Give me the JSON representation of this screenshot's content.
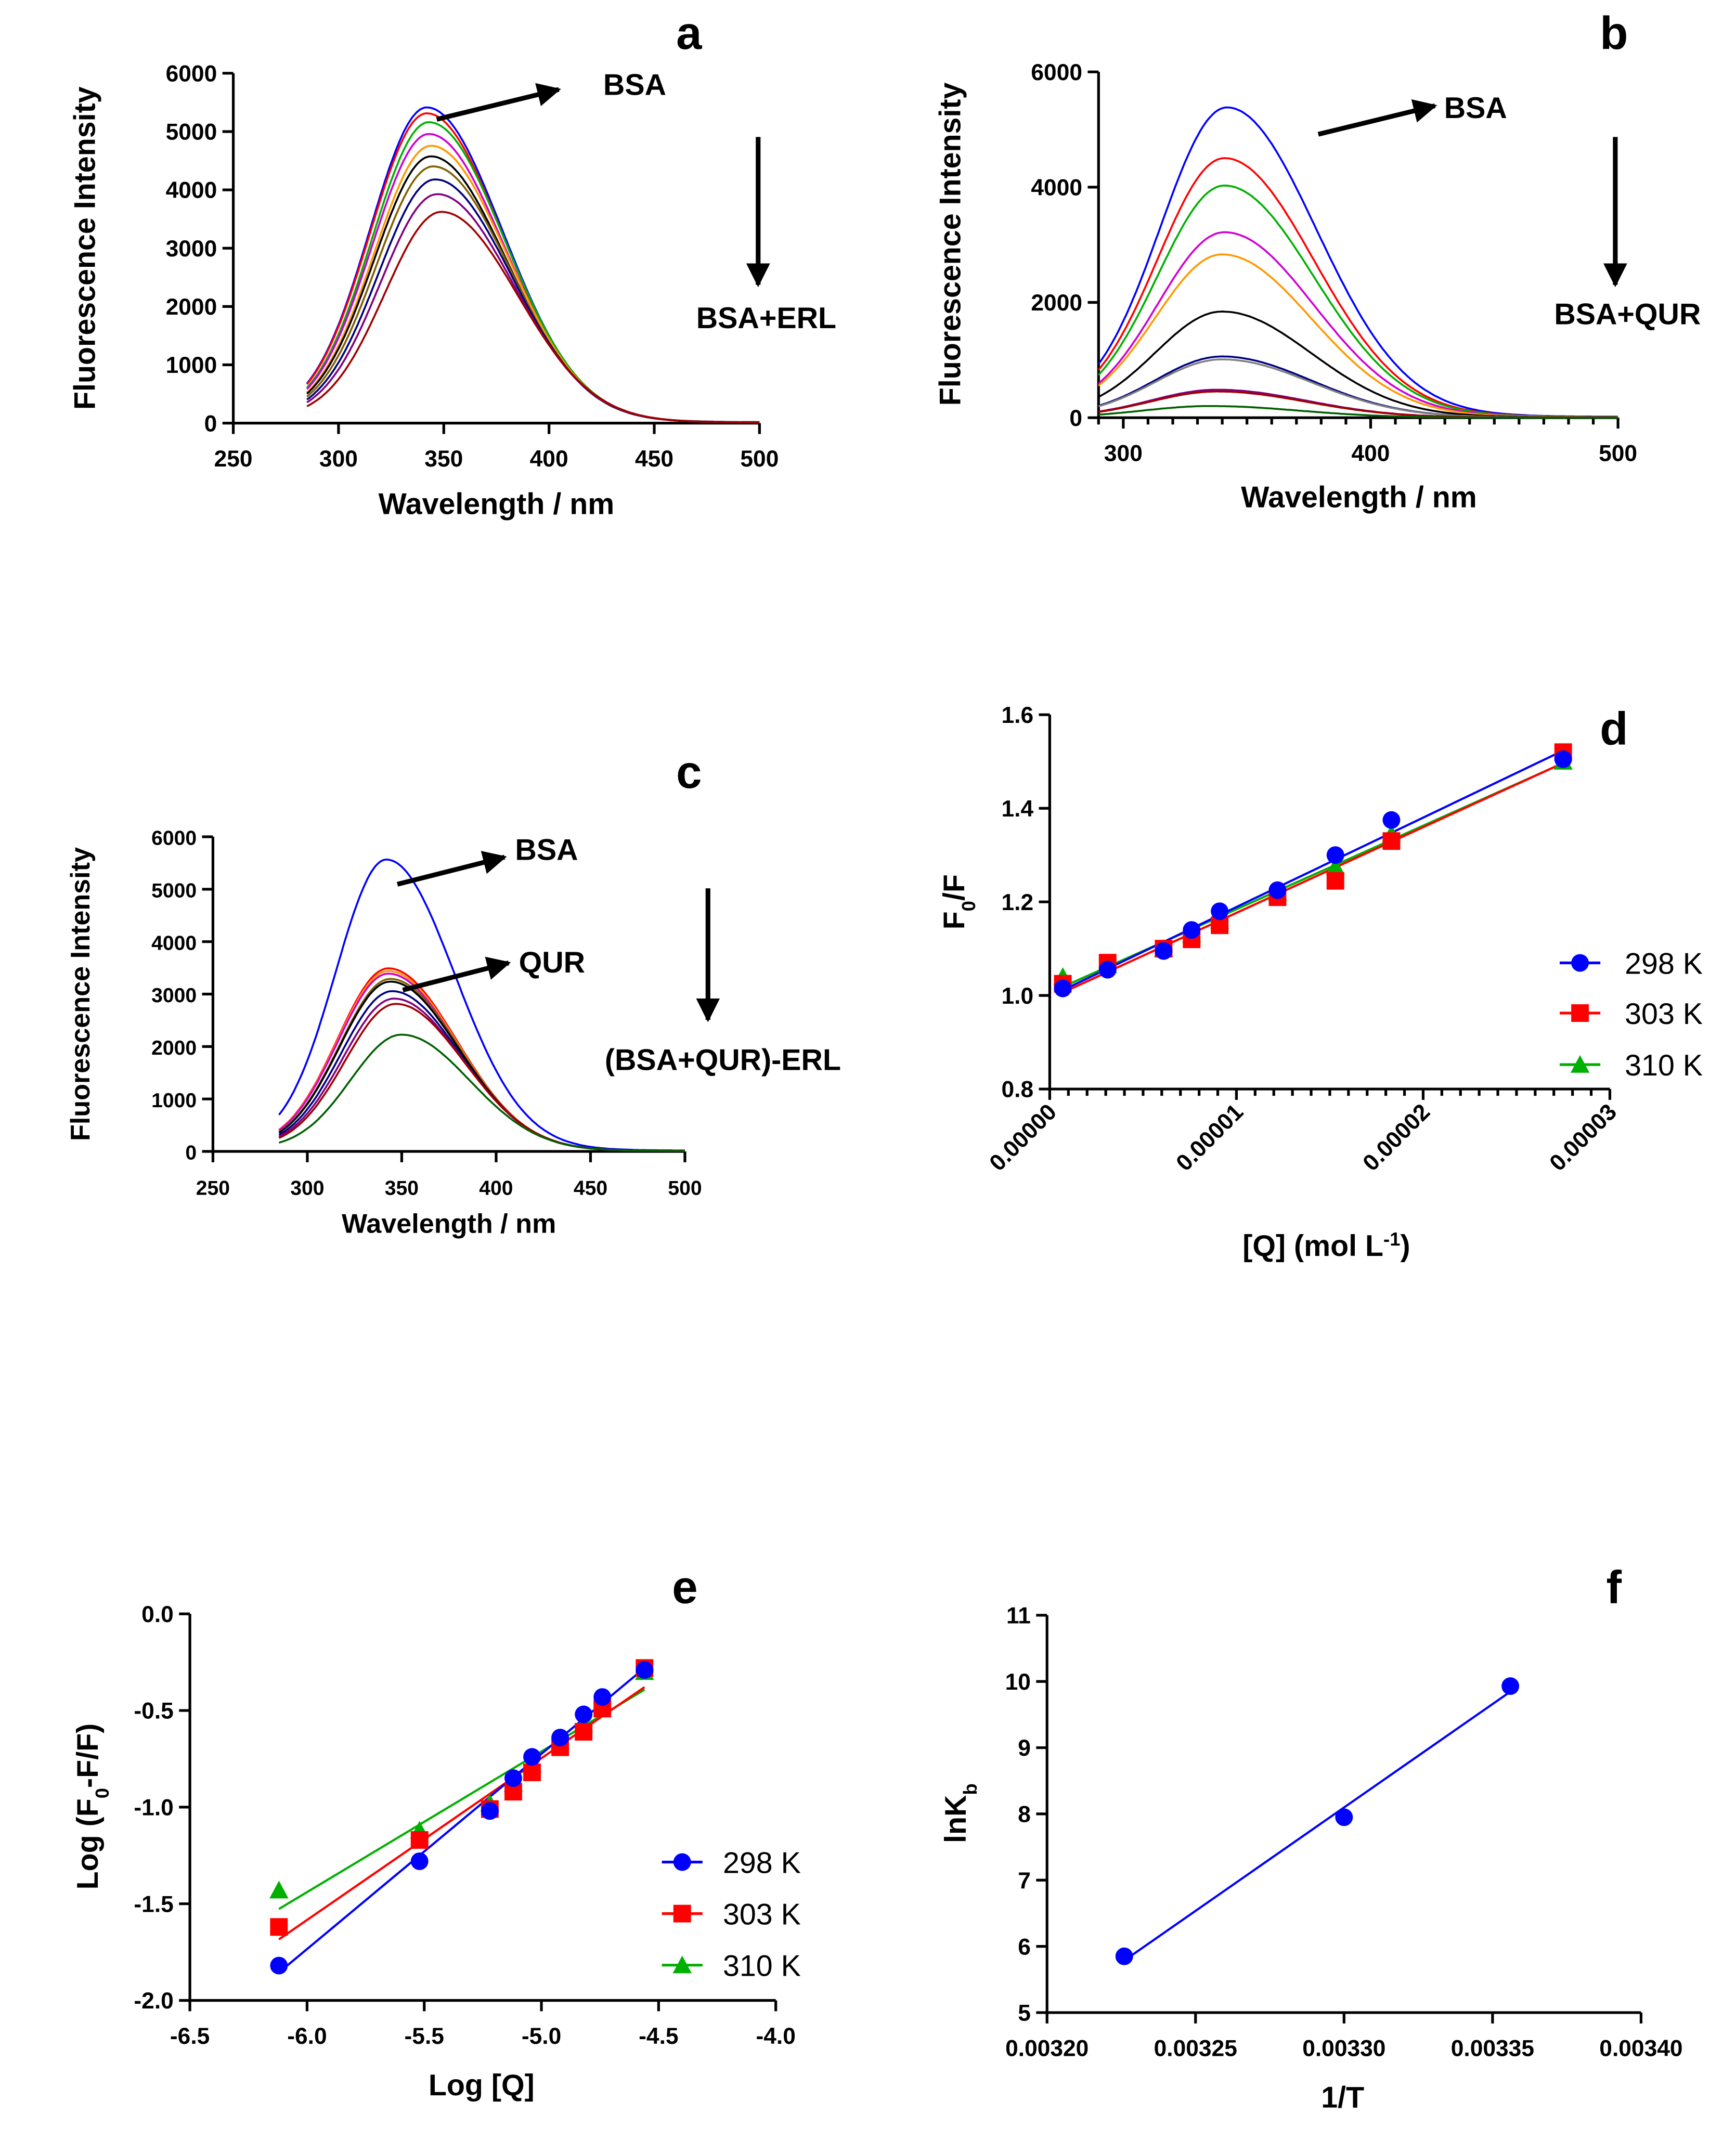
{
  "chart_data": [
    {
      "panel": "a",
      "type": "line",
      "xlabel": "Wavelength / nm",
      "ylabel": "Fluorescence Intensity",
      "xlim": [
        250,
        500
      ],
      "ylim": [
        0,
        6000
      ],
      "xticks": [
        250,
        300,
        350,
        400,
        450,
        500
      ],
      "yticks": [
        0,
        1000,
        2000,
        3000,
        4000,
        5000,
        6000
      ],
      "x_range_data": [
        285,
        500
      ],
      "annotations": [
        "BSA",
        "BSA+ERL"
      ],
      "series": [
        {
          "color": "#0000ff",
          "peak_wavelength": 342,
          "peak_intensity": 5350
        },
        {
          "color": "#ff0000",
          "peak_wavelength": 342,
          "peak_intensity": 5250
        },
        {
          "color": "#00b000",
          "peak_wavelength": 343,
          "peak_intensity": 5100
        },
        {
          "color": "#d000d0",
          "peak_wavelength": 343,
          "peak_intensity": 4900
        },
        {
          "color": "#ff9900",
          "peak_wavelength": 344,
          "peak_intensity": 4700
        },
        {
          "color": "#000000",
          "peak_wavelength": 344,
          "peak_intensity": 4520
        },
        {
          "color": "#806000",
          "peak_wavelength": 345,
          "peak_intensity": 4350
        },
        {
          "color": "#000080",
          "peak_wavelength": 346,
          "peak_intensity": 4130
        },
        {
          "color": "#800080",
          "peak_wavelength": 347,
          "peak_intensity": 3880
        },
        {
          "color": "#a00000",
          "peak_wavelength": 349,
          "peak_intensity": 3580
        }
      ]
    },
    {
      "panel": "b",
      "type": "line",
      "xlabel": "Wavelength / nm",
      "ylabel": "Fluorescence Intensity",
      "xlim": [
        290,
        500
      ],
      "ylim": [
        0,
        6000
      ],
      "xticks": [
        300,
        400,
        500
      ],
      "yticks": [
        0,
        2000,
        4000,
        6000
      ],
      "x_range_data": [
        290,
        500
      ],
      "annotations": [
        "BSA",
        "BSA+QUR"
      ],
      "series": [
        {
          "color": "#0000ff",
          "peak_wavelength": 342,
          "peak_intensity": 5320
        },
        {
          "color": "#ff0000",
          "peak_wavelength": 341,
          "peak_intensity": 4450
        },
        {
          "color": "#00b000",
          "peak_wavelength": 341,
          "peak_intensity": 3980
        },
        {
          "color": "#d000d0",
          "peak_wavelength": 341,
          "peak_intensity": 3180
        },
        {
          "color": "#ff9900",
          "peak_wavelength": 340,
          "peak_intensity": 2800
        },
        {
          "color": "#000000",
          "peak_wavelength": 340,
          "peak_intensity": 1820
        },
        {
          "color": "#000080",
          "peak_wavelength": 340,
          "peak_intensity": 1050
        },
        {
          "color": "#808080",
          "peak_wavelength": 340,
          "peak_intensity": 1000
        },
        {
          "color": "#800080",
          "peak_wavelength": 338,
          "peak_intensity": 480
        },
        {
          "color": "#a00000",
          "peak_wavelength": 338,
          "peak_intensity": 450
        },
        {
          "color": "#006000",
          "peak_wavelength": 335,
          "peak_intensity": 200
        }
      ]
    },
    {
      "panel": "c",
      "type": "line",
      "xlabel": "Wavelength / nm",
      "ylabel": "Fluorescence Intensity",
      "xlim": [
        250,
        500
      ],
      "ylim": [
        0,
        6000
      ],
      "xticks": [
        250,
        300,
        350,
        400,
        450,
        500
      ],
      "yticks": [
        0,
        1000,
        2000,
        3000,
        4000,
        5000,
        6000
      ],
      "x_range_data": [
        285,
        500
      ],
      "annotations": [
        "BSA",
        "QUR",
        "(BSA+QUR)-ERL"
      ],
      "series": [
        {
          "color": "#0000ff",
          "peak_wavelength": 342,
          "peak_intensity": 5500
        },
        {
          "color": "#ff0000",
          "peak_wavelength": 343,
          "peak_intensity": 3450
        },
        {
          "color": "#ff9900",
          "peak_wavelength": 343,
          "peak_intensity": 3400
        },
        {
          "color": "#d000d0",
          "peak_wavelength": 343,
          "peak_intensity": 3350
        },
        {
          "color": "#806000",
          "peak_wavelength": 344,
          "peak_intensity": 3250
        },
        {
          "color": "#000000",
          "peak_wavelength": 344,
          "peak_intensity": 3200
        },
        {
          "color": "#000080",
          "peak_wavelength": 345,
          "peak_intensity": 3020
        },
        {
          "color": "#800080",
          "peak_wavelength": 346,
          "peak_intensity": 2880
        },
        {
          "color": "#a00000",
          "peak_wavelength": 347,
          "peak_intensity": 2780
        },
        {
          "color": "#006000",
          "peak_wavelength": 350,
          "peak_intensity": 2200
        }
      ]
    },
    {
      "panel": "d",
      "type": "scatter",
      "xlabel": [
        "[Q] (mol L",
        "-1",
        ")"
      ],
      "ylabel": [
        "F",
        "0",
        "/F"
      ],
      "xlim": [
        0,
        3e-05
      ],
      "ylim": [
        0.8,
        1.6
      ],
      "xticks": [
        "0.00000",
        "0.00001",
        "0.00002",
        "0.00003"
      ],
      "yticks": [
        "0.8",
        "1.0",
        "1.2",
        "1.4",
        "1.6"
      ],
      "x": [
        7e-07,
        3.1e-06,
        6.1e-06,
        7.6e-06,
        9.1e-06,
        1.22e-05,
        1.53e-05,
        1.83e-05,
        2.75e-05
      ],
      "legend_position": "right",
      "series": [
        {
          "name": "298 K",
          "color": "#0000ff",
          "marker": "circle",
          "values": [
            1.015,
            1.055,
            1.095,
            1.14,
            1.18,
            1.225,
            1.3,
            1.375,
            1.505
          ]
        },
        {
          "name": "303 K",
          "color": "#ff0000",
          "marker": "square",
          "values": [
            1.025,
            1.07,
            1.1,
            1.12,
            1.15,
            1.21,
            1.245,
            1.33,
            1.52
          ]
        },
        {
          "name": "310 K",
          "color": "#00b000",
          "marker": "triangle",
          "values": [
            1.04,
            1.065,
            1.1,
            1.13,
            1.16,
            1.22,
            1.275,
            1.345,
            1.5
          ]
        }
      ]
    },
    {
      "panel": "e",
      "type": "scatter",
      "xlabel": [
        "Log [Q]"
      ],
      "ylabel": [
        "Log (F",
        "0",
        "-F/F)"
      ],
      "xlim": [
        -6.5,
        -4.0
      ],
      "ylim": [
        -2.0,
        0.0
      ],
      "xticks": [
        "-6.5",
        "-6.0",
        "-5.5",
        "-5.0",
        "-4.5",
        "-4.0"
      ],
      "yticks": [
        "-2.0",
        "-1.5",
        "-1.0",
        "-0.5",
        "0.0"
      ],
      "x": [
        -6.12,
        -5.52,
        -5.22,
        -5.12,
        -5.04,
        -4.92,
        -4.82,
        -4.74,
        -4.56
      ],
      "legend_position": "right",
      "series": [
        {
          "name": "298 K",
          "color": "#0000ff",
          "marker": "circle",
          "values": [
            -1.82,
            -1.28,
            -1.02,
            -0.85,
            -0.74,
            -0.64,
            -0.52,
            -0.43,
            -0.29
          ]
        },
        {
          "name": "303 K",
          "color": "#ff0000",
          "marker": "square",
          "values": [
            -1.62,
            -1.17,
            -1.01,
            -0.92,
            -0.82,
            -0.69,
            -0.61,
            -0.49,
            -0.28
          ]
        },
        {
          "name": "310 K",
          "color": "#00b000",
          "marker": "triangle",
          "values": [
            -1.43,
            -1.12,
            -0.98,
            -0.88,
            -0.78,
            -0.66,
            -0.57,
            -0.46,
            -0.3
          ]
        }
      ]
    },
    {
      "panel": "f",
      "type": "scatter",
      "xlabel": [
        "1/T"
      ],
      "ylabel": [
        "lnK",
        "b",
        ""
      ],
      "xlim": [
        0.0032,
        0.0034
      ],
      "ylim": [
        5,
        11
      ],
      "xticks": [
        "0.00320",
        "0.00325",
        "0.00330",
        "0.00335",
        "0.00340"
      ],
      "yticks": [
        "5",
        "6",
        "7",
        "8",
        "9",
        "10",
        "11"
      ],
      "x": [
        0.003226,
        0.0033,
        0.003356
      ],
      "series": [
        {
          "name": "",
          "color": "#0000ff",
          "marker": "circle",
          "values": [
            5.85,
            7.95,
            9.93
          ]
        }
      ]
    }
  ]
}
